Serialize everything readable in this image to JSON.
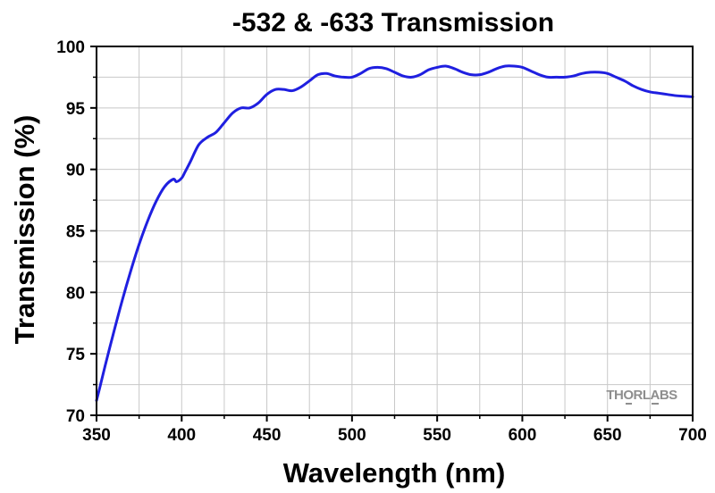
{
  "chart_data": {
    "type": "line",
    "title": "-532 & -633 Transmission",
    "xlabel": "Wavelength (nm)",
    "ylabel": "Transmission (%)",
    "xlim": [
      350,
      700
    ],
    "ylim": [
      70,
      100
    ],
    "xticks": [
      350,
      400,
      450,
      500,
      550,
      600,
      650,
      700
    ],
    "yticks": [
      70,
      75,
      80,
      85,
      90,
      95,
      100
    ],
    "grid": true,
    "line_color": "#1f1fe0",
    "watermark": "THORLABS",
    "series": [
      {
        "x": [
          350,
          352,
          355,
          360,
          365,
          370,
          375,
          380,
          385,
          390,
          395,
          397,
          400,
          402,
          405,
          410,
          415,
          420,
          425,
          430,
          435,
          440,
          445,
          450,
          455,
          460,
          465,
          470,
          475,
          480,
          485,
          490,
          495,
          500,
          505,
          510,
          515,
          520,
          525,
          530,
          535,
          540,
          545,
          550,
          555,
          560,
          565,
          570,
          575,
          580,
          585,
          590,
          595,
          600,
          605,
          610,
          615,
          620,
          625,
          630,
          635,
          640,
          645,
          650,
          655,
          660,
          665,
          670,
          675,
          680,
          685,
          690,
          695,
          700
        ],
        "y": [
          71.2,
          72.3,
          74.0,
          76.7,
          79.3,
          81.7,
          83.9,
          85.8,
          87.4,
          88.6,
          89.2,
          89.0,
          89.3,
          89.8,
          90.6,
          92.0,
          92.6,
          93.0,
          93.8,
          94.6,
          95.0,
          95.0,
          95.4,
          96.1,
          96.5,
          96.5,
          96.4,
          96.7,
          97.2,
          97.7,
          97.8,
          97.6,
          97.5,
          97.5,
          97.8,
          98.2,
          98.3,
          98.2,
          97.9,
          97.6,
          97.5,
          97.7,
          98.1,
          98.3,
          98.4,
          98.2,
          97.9,
          97.7,
          97.7,
          97.9,
          98.2,
          98.4,
          98.4,
          98.3,
          98.0,
          97.7,
          97.5,
          97.5,
          97.5,
          97.6,
          97.8,
          97.9,
          97.9,
          97.8,
          97.5,
          97.2,
          96.8,
          96.5,
          96.3,
          96.2,
          96.1,
          96.0,
          95.95,
          95.9
        ]
      }
    ]
  }
}
